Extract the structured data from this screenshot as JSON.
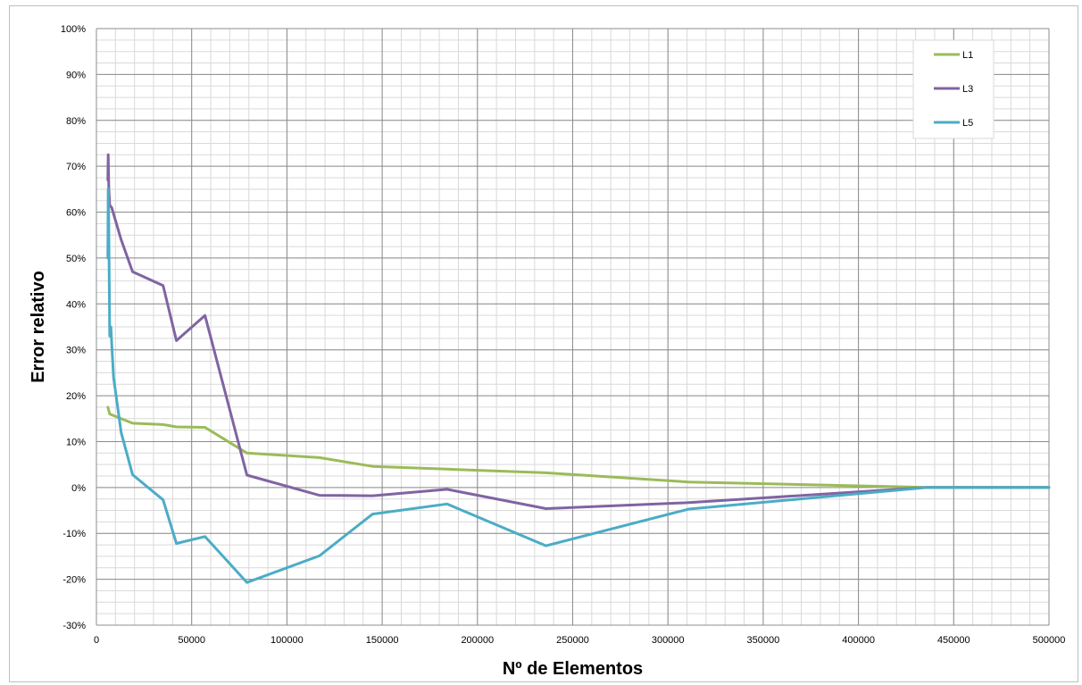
{
  "chart_data": {
    "type": "line",
    "title": "",
    "xlabel": "Nº de Elementos",
    "ylabel": "Error relativo",
    "xlim": [
      0,
      500000
    ],
    "ylim": [
      -0.3,
      1.0
    ],
    "x_ticks": [
      0,
      50000,
      100000,
      150000,
      200000,
      250000,
      300000,
      350000,
      400000,
      450000,
      500000
    ],
    "x_tick_labels": [
      "0",
      "50000",
      "100000",
      "150000",
      "200000",
      "250000",
      "300000",
      "350000",
      "400000",
      "450000",
      "500000"
    ],
    "y_ticks": [
      -0.3,
      -0.2,
      -0.1,
      0.0,
      0.1,
      0.2,
      0.3,
      0.4,
      0.5,
      0.6,
      0.7,
      0.8,
      0.9,
      1.0
    ],
    "y_tick_labels": [
      "-30%",
      "-20%",
      "-10%",
      "0%",
      "10%",
      "20%",
      "30%",
      "40%",
      "50%",
      "60%",
      "70%",
      "80%",
      "90%",
      "100%"
    ],
    "grid": true,
    "legend_position": "top-right",
    "series": [
      {
        "name": "L1",
        "color": "#9bbb59",
        "x": [
          6000,
          7000,
          19000,
          35000,
          42000,
          57000,
          79000,
          117000,
          145000,
          184000,
          236000,
          311000,
          436000,
          500000
        ],
        "y": [
          0.175,
          0.16,
          0.14,
          0.137,
          0.132,
          0.131,
          0.075,
          0.065,
          0.046,
          0.04,
          0.032,
          0.012,
          0.0,
          0.0
        ]
      },
      {
        "name": "L3",
        "color": "#8064a2",
        "x": [
          6000,
          6200,
          6500,
          7000,
          8000,
          13000,
          19000,
          35000,
          42000,
          57000,
          79000,
          117000,
          145000,
          184000,
          236000,
          311000,
          436000,
          500000
        ],
        "y": [
          0.67,
          0.725,
          0.65,
          0.615,
          0.61,
          0.54,
          0.47,
          0.44,
          0.32,
          0.375,
          0.027,
          -0.017,
          -0.018,
          -0.004,
          -0.046,
          -0.033,
          0.0,
          0.0
        ]
      },
      {
        "name": "L5",
        "color": "#4bacc6",
        "x": [
          6000,
          6200,
          6400,
          7000,
          7600,
          8000,
          9000,
          13000,
          19000,
          35000,
          42000,
          57000,
          79000,
          117000,
          145000,
          184000,
          236000,
          311000,
          436000,
          500000
        ],
        "y": [
          0.5,
          0.65,
          0.6,
          0.33,
          0.35,
          0.315,
          0.24,
          0.12,
          0.028,
          -0.027,
          -0.122,
          -0.107,
          -0.207,
          -0.149,
          -0.058,
          -0.036,
          -0.127,
          -0.047,
          0.0,
          0.0
        ]
      }
    ]
  }
}
